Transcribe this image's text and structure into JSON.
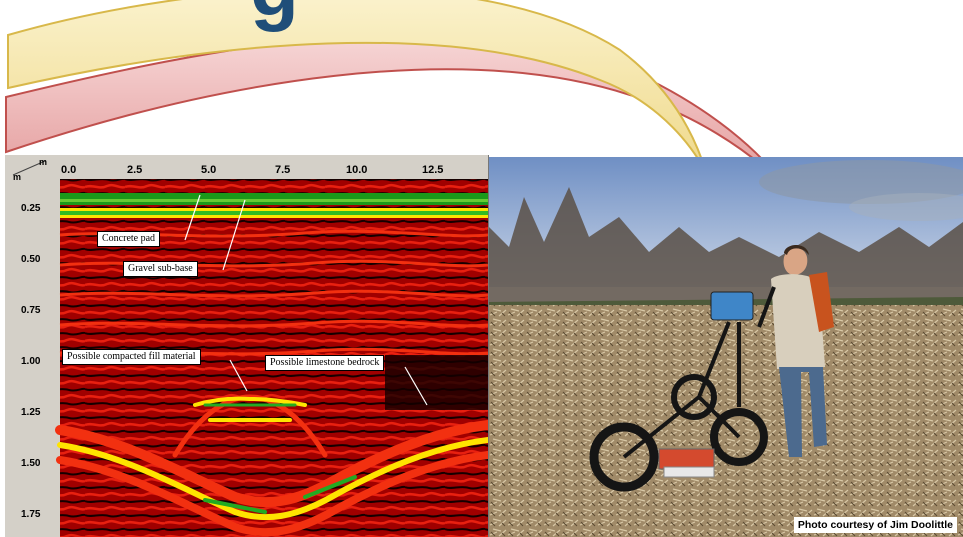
{
  "title_fragment": "g",
  "radargram": {
    "unit_x": "m",
    "unit_y": "m",
    "x_ticks": [
      "0.0",
      "2.5",
      "5.0",
      "7.5",
      "10.0",
      "12.5"
    ],
    "y_ticks": [
      "0.25",
      "0.50",
      "0.75",
      "1.00",
      "1.25",
      "1.50",
      "1.75"
    ],
    "annotations": {
      "concrete_pad": "Concrete pad",
      "gravel_sub_base": "Gravel sub-base",
      "compacted_fill": "Possible compacted fill material",
      "limestone_bedrock": "Possible limestone bedrock"
    }
  },
  "photo": {
    "credit": "Photo courtesy of Jim Doolittle"
  },
  "colors": {
    "arc_yellow": "#f6e6a0",
    "arc_red": "#e8a0a0",
    "radar_background": "#b00000",
    "reflector_yellow": "#ffee00",
    "reflector_green": "#22aa22",
    "sky": "#7f9ccc",
    "field": "#a08866"
  }
}
